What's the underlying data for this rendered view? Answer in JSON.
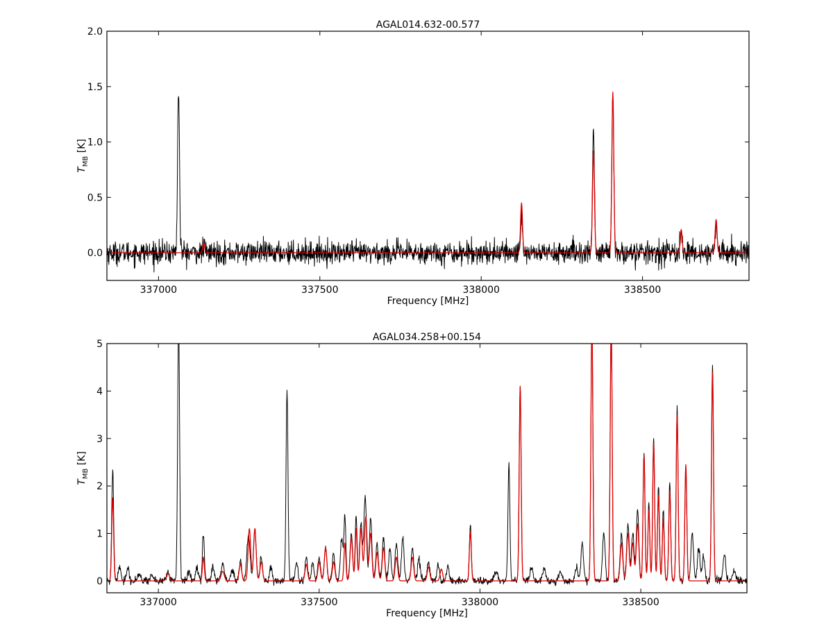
{
  "chart_data": [
    {
      "type": "line",
      "title": "AGAL014.632-00.577",
      "xlabel": "Frequency [MHz]",
      "ylabel": "T_MB [K]",
      "ylabel_main": "T",
      "ylabel_sub": "MB",
      "ylabel_unit": " [K]",
      "xlim": [
        336840,
        338830
      ],
      "ylim": [
        -0.25,
        2.0
      ],
      "xticks": [
        337000,
        337500,
        338000,
        338500
      ],
      "xtick_labels": [
        "337000",
        "337500",
        "338000",
        "338500"
      ],
      "yticks": [
        0.0,
        0.5,
        1.0,
        1.5,
        2.0
      ],
      "ytick_labels": [
        "0.0",
        "0.5",
        "1.0",
        "1.5",
        "2.0"
      ],
      "grid": false,
      "noise": 0.05,
      "series": [
        {
          "color": "#000000",
          "style": "observed",
          "baseline": 0.0,
          "peaks": [
            [
              337062,
              1.46,
              3
            ],
            [
              337140,
              0.05,
              3
            ],
            [
              338125,
              0.35,
              3
            ],
            [
              338348,
              1.12,
              3
            ],
            [
              338408,
              1.4,
              3
            ],
            [
              338620,
              0.18,
              3
            ],
            [
              338728,
              0.25,
              3
            ]
          ]
        },
        {
          "color": "#dd0000",
          "style": "model",
          "baseline": 0.0,
          "peaks": [
            [
              337140,
              0.09,
              3
            ],
            [
              338125,
              0.45,
              3
            ],
            [
              338348,
              0.92,
              3
            ],
            [
              338408,
              1.45,
              3
            ],
            [
              338620,
              0.21,
              3
            ],
            [
              338728,
              0.3,
              3
            ]
          ]
        }
      ]
    },
    {
      "type": "line",
      "title": "AGAL034.258+00.154",
      "xlabel": "Frequency [MHz]",
      "ylabel": "T_MB [K]",
      "ylabel_main": "T",
      "ylabel_sub": "MB",
      "ylabel_unit": " [K]",
      "xlim": [
        336840,
        338830
      ],
      "ylim": [
        -0.25,
        5.0
      ],
      "xticks": [
        337000,
        337500,
        338000,
        338500
      ],
      "xtick_labels": [
        "337000",
        "337500",
        "338000",
        "338500"
      ],
      "yticks": [
        0,
        1,
        2,
        3,
        4,
        5
      ],
      "ytick_labels": [
        "0",
        "1",
        "2",
        "3",
        "4",
        "5"
      ],
      "grid": false,
      "noise": 0.035,
      "series": [
        {
          "color": "#000000",
          "style": "observed",
          "baseline": 0.0,
          "peaks": [
            [
              336858,
              2.35,
              3
            ],
            [
              336880,
              0.3,
              4
            ],
            [
              336905,
              0.28,
              4
            ],
            [
              336940,
              0.15,
              5
            ],
            [
              336980,
              0.12,
              5
            ],
            [
              337030,
              0.18,
              5
            ],
            [
              337063,
              5.5,
              3
            ],
            [
              337095,
              0.2,
              4
            ],
            [
              337120,
              0.25,
              5
            ],
            [
              337140,
              1.0,
              3
            ],
            [
              337170,
              0.3,
              4
            ],
            [
              337200,
              0.35,
              5
            ],
            [
              337230,
              0.2,
              5
            ],
            [
              337255,
              0.4,
              4
            ],
            [
              337280,
              0.95,
              5
            ],
            [
              337300,
              1.1,
              4
            ],
            [
              337320,
              0.5,
              4
            ],
            [
              337350,
              0.3,
              4
            ],
            [
              337400,
              4.05,
              3
            ],
            [
              337430,
              0.4,
              4
            ],
            [
              337460,
              0.5,
              4
            ],
            [
              337480,
              0.4,
              4
            ],
            [
              337500,
              0.5,
              4
            ],
            [
              337520,
              0.7,
              4
            ],
            [
              337545,
              0.6,
              4
            ],
            [
              337570,
              0.9,
              4
            ],
            [
              337580,
              1.35,
              3
            ],
            [
              337600,
              1.0,
              4
            ],
            [
              337615,
              1.4,
              3
            ],
            [
              337630,
              1.2,
              4
            ],
            [
              337643,
              1.8,
              4
            ],
            [
              337660,
              1.3,
              4
            ],
            [
              337680,
              0.8,
              4
            ],
            [
              337700,
              0.9,
              4
            ],
            [
              337720,
              0.7,
              4
            ],
            [
              337740,
              0.8,
              4
            ],
            [
              337760,
              0.9,
              4
            ],
            [
              337790,
              0.7,
              4
            ],
            [
              337810,
              0.5,
              4
            ],
            [
              337840,
              0.4,
              4
            ],
            [
              337870,
              0.35,
              4
            ],
            [
              337900,
              0.3,
              4
            ],
            [
              337970,
              1.15,
              3
            ],
            [
              338050,
              0.2,
              5
            ],
            [
              338090,
              2.45,
              3
            ],
            [
              338125,
              4.1,
              3
            ],
            [
              338160,
              0.3,
              4
            ],
            [
              338200,
              0.25,
              5
            ],
            [
              338250,
              0.2,
              5
            ],
            [
              338300,
              0.3,
              4
            ],
            [
              338318,
              0.8,
              4
            ],
            [
              338348,
              5.5,
              3
            ],
            [
              338385,
              1.0,
              4
            ],
            [
              338408,
              5.5,
              3
            ],
            [
              338440,
              1.0,
              4
            ],
            [
              338460,
              1.2,
              4
            ],
            [
              338475,
              1.0,
              4
            ],
            [
              338490,
              1.5,
              4
            ],
            [
              338510,
              2.75,
              3
            ],
            [
              338525,
              1.6,
              3
            ],
            [
              338540,
              3.05,
              3
            ],
            [
              338555,
              2.0,
              3
            ],
            [
              338570,
              1.5,
              3
            ],
            [
              338590,
              2.05,
              3
            ],
            [
              338613,
              3.65,
              3
            ],
            [
              338640,
              2.45,
              3
            ],
            [
              338660,
              1.0,
              4
            ],
            [
              338680,
              0.7,
              4
            ],
            [
              338695,
              0.5,
              4
            ],
            [
              338723,
              4.55,
              3
            ],
            [
              338760,
              0.55,
              4
            ],
            [
              338790,
              0.2,
              5
            ]
          ]
        },
        {
          "color": "#dd0000",
          "style": "model",
          "baseline": 0.0,
          "peaks": [
            [
              336858,
              1.75,
              3
            ],
            [
              337030,
              0.15,
              5
            ],
            [
              337140,
              0.5,
              3
            ],
            [
              337200,
              0.2,
              5
            ],
            [
              337255,
              0.35,
              4
            ],
            [
              337283,
              1.1,
              4
            ],
            [
              337300,
              1.1,
              4
            ],
            [
              337320,
              0.4,
              4
            ],
            [
              337460,
              0.35,
              4
            ],
            [
              337500,
              0.4,
              4
            ],
            [
              337520,
              0.7,
              4
            ],
            [
              337545,
              0.4,
              4
            ],
            [
              337580,
              0.8,
              3
            ],
            [
              337600,
              0.9,
              4
            ],
            [
              337615,
              1.1,
              3
            ],
            [
              337630,
              1.1,
              4
            ],
            [
              337645,
              1.35,
              4
            ],
            [
              337660,
              1.0,
              4
            ],
            [
              337680,
              0.6,
              4
            ],
            [
              337700,
              0.7,
              4
            ],
            [
              337740,
              0.5,
              4
            ],
            [
              337790,
              0.5,
              4
            ],
            [
              337840,
              0.3,
              4
            ],
            [
              337880,
              0.25,
              4
            ],
            [
              337970,
              1.05,
              3
            ],
            [
              338125,
              4.1,
              3
            ],
            [
              338348,
              5.5,
              3
            ],
            [
              338408,
              5.5,
              3
            ],
            [
              338440,
              0.8,
              4
            ],
            [
              338460,
              1.0,
              4
            ],
            [
              338475,
              0.8,
              4
            ],
            [
              338490,
              1.2,
              4
            ],
            [
              338510,
              2.65,
              3
            ],
            [
              338525,
              1.5,
              3
            ],
            [
              338540,
              2.9,
              3
            ],
            [
              338555,
              1.8,
              3
            ],
            [
              338570,
              1.3,
              3
            ],
            [
              338590,
              1.9,
              3
            ],
            [
              338613,
              3.5,
              3
            ],
            [
              338640,
              2.45,
              3
            ],
            [
              338723,
              4.4,
              3
            ]
          ]
        }
      ]
    }
  ]
}
